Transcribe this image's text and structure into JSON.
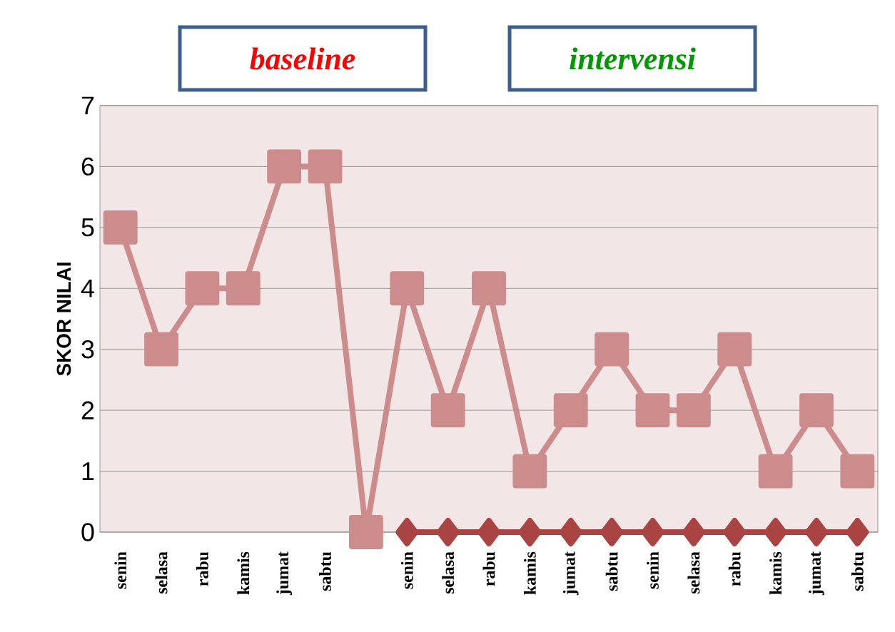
{
  "chart_data": {
    "type": "line",
    "ylabel": "SKOR NILAI",
    "annotations": [
      "baseline",
      "intervensi"
    ],
    "categories": [
      "senin",
      "selasa",
      "rabu",
      "kamis",
      "jumat",
      "sabtu",
      null,
      "senin",
      "selasa",
      "rabu",
      "kamis",
      "jumat",
      "sabtu",
      "senin",
      "selasa",
      "rabu",
      "kamis",
      "jumat",
      "sabtu"
    ],
    "series": [
      {
        "color": "#cd8c8c",
        "marker": "square",
        "values": [
          5,
          3,
          4,
          4,
          6,
          6,
          0,
          4,
          2,
          4,
          1,
          2,
          3,
          2,
          2,
          3,
          1,
          2,
          1
        ]
      },
      {
        "color": "#a94442",
        "marker": "diamond",
        "values": [
          null,
          null,
          null,
          null,
          null,
          null,
          null,
          0,
          0,
          0,
          0,
          0,
          0,
          0,
          0,
          0,
          0,
          0,
          0
        ]
      }
    ],
    "ylim": [
      0,
      7
    ],
    "yticks": [
      0,
      1,
      2,
      3,
      4,
      5,
      6,
      7
    ],
    "grid": "y"
  }
}
